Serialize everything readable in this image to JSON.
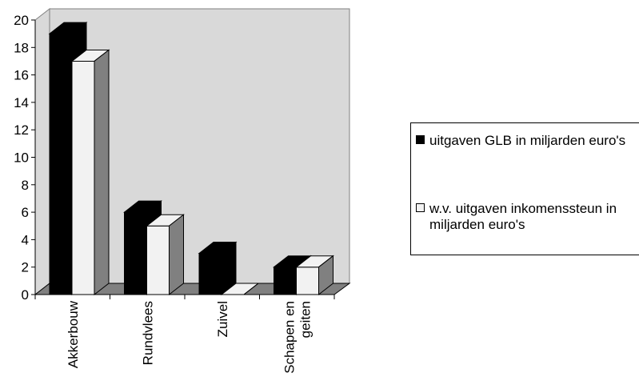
{
  "chart_data": {
    "type": "bar",
    "style": "3d-clustered-column",
    "categories": [
      "Akkerbouw",
      "Rundvlees",
      "Zuivel",
      "Schapen en\ngeiten"
    ],
    "series": [
      {
        "name": "uitgaven GLB in miljarden euro's",
        "values": [
          19,
          6,
          3,
          2
        ],
        "color": "#000000"
      },
      {
        "name": "w.v. uitgaven inkomenssteun in miljarden euro's",
        "values": [
          17,
          5,
          0,
          2
        ],
        "color": "#f2f2f2"
      }
    ],
    "ylim": [
      0,
      20
    ],
    "yticks": [
      "0",
      "2",
      "4",
      "6",
      "8",
      "10",
      "12",
      "14",
      "16",
      "18",
      "20"
    ],
    "title": "",
    "xlabel": "",
    "ylabel": "",
    "legend": "right",
    "wall_color": "#d9d9d9",
    "floor_color": "#808080",
    "side_colors": {
      "dark": "#000000",
      "light": "#808080"
    }
  }
}
